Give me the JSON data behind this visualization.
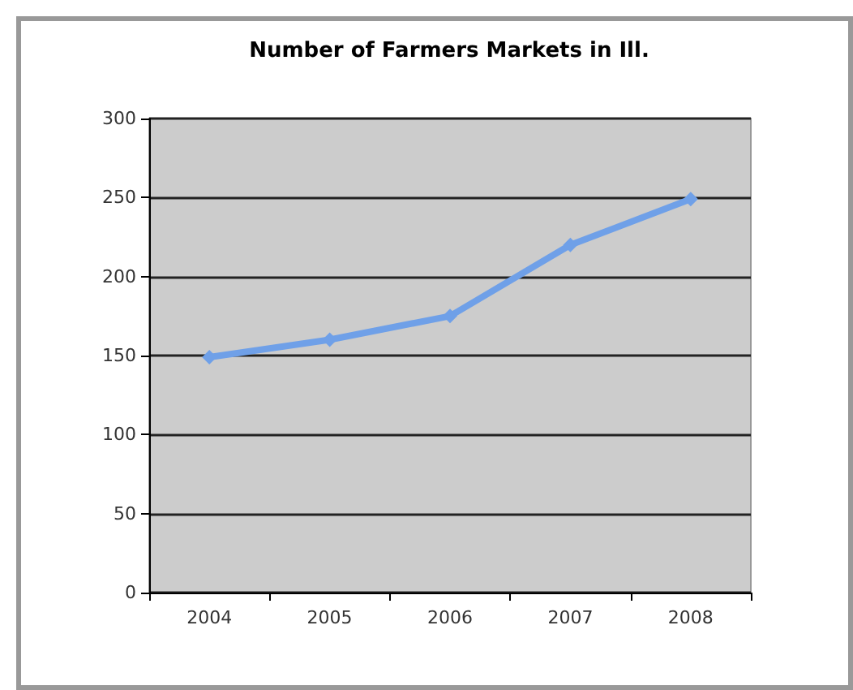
{
  "chart_data": {
    "type": "line",
    "title": "Number of Farmers Markets in Ill.",
    "categories": [
      "2004",
      "2005",
      "2006",
      "2007",
      "2008"
    ],
    "series": [
      {
        "color": "#6fa0e8",
        "values": [
          149,
          160,
          175,
          220,
          249
        ]
      }
    ],
    "ylim": [
      0,
      300
    ],
    "yticks": [
      0,
      50,
      100,
      150,
      200,
      250,
      300
    ],
    "grid": "y",
    "marker": "diamond",
    "line_style": "solid"
  }
}
